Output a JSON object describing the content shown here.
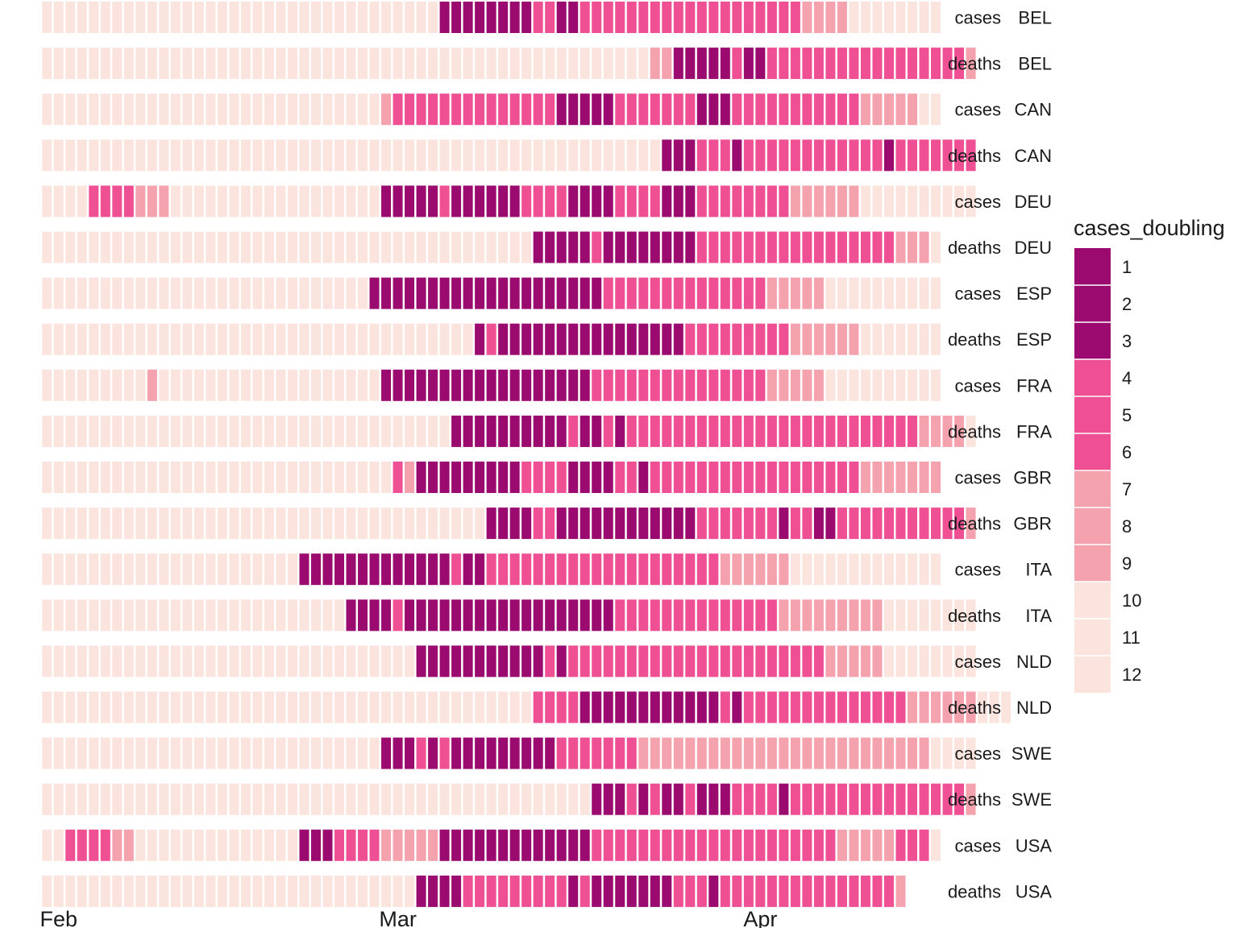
{
  "chart_data": {
    "type": "heatmap",
    "title": "",
    "xlabel": "",
    "ylabel": "",
    "x_start_date": "2020-01-31",
    "x_ticks": [
      {
        "label": "Feb",
        "date": "2020-02-01"
      },
      {
        "label": "Mar",
        "date": "2020-03-01"
      },
      {
        "label": "Apr",
        "date": "2020-04-01"
      }
    ],
    "legend": {
      "title": "cases_doubling",
      "position": "right",
      "levels": [
        "1",
        "2",
        "3",
        "4",
        "5",
        "6",
        "7",
        "8",
        "9",
        "10",
        "11",
        "12"
      ],
      "colors": [
        "#9b0a6e",
        "#9b0a6e",
        "#9b0a6e",
        "#ef5094",
        "#ef5094",
        "#ef5094",
        "#f4a3ae",
        "#f4a3ae",
        "#f4a3ae",
        "#fbe4de",
        "#fbe4de",
        "#fbe4de"
      ]
    },
    "color_classes": {
      "1": "#9b0a6e",
      "2": "#ef5094",
      "3": "#f4a3ae",
      "4": "#fbe4de"
    },
    "rows": [
      {
        "measure": "cases",
        "country": "BEL",
        "values": "44444444444444444444444444444444441111111122112222222222222222222333344444444"
      },
      {
        "measure": "deaths",
        "country": "BEL",
        "values": "44444444444444444444444444444444444444444444444444443311111211222222222222222223"
      },
      {
        "measure": "cases",
        "country": "CAN",
        "values": "44444444444444444444444444444322222222222222111112222222111222222222223333344"
      },
      {
        "measure": "deaths",
        "country": "CAN",
        "values": "44444444444444444444444444444444444444444444444444444111222122222222222212222222"
      },
      {
        "measure": "cases",
        "country": "DEU",
        "values": "44442222333444444444444444444111112111111222211112222111222222223333334444444444"
      },
      {
        "measure": "deaths",
        "country": "DEU",
        "values": "44444444444444444444444444444444444444444411111211111111222222222222222223334"
      },
      {
        "measure": "cases",
        "country": "ESP",
        "values": "44444444444444444444444444441111111111111111111122222222222222333334444444444"
      },
      {
        "measure": "deaths",
        "country": "ESP",
        "values": "44444444444444444444444444444444444441211111111111111112222222223333334444444"
      },
      {
        "measure": "cases",
        "country": "FRA",
        "values": "44444444434444444444444444444111111111111111111222222222222222333334444444444"
      },
      {
        "measure": "deaths",
        "country": "FRA",
        "values": "44444444444444444444444444444444444111111111121121222222222222222222222222233334"
      },
      {
        "measure": "cases",
        "country": "GBR",
        "values": "44444444444444444444444444444423111111111222211112212222222222222222223333333"
      },
      {
        "measure": "deaths",
        "country": "GBR",
        "values": "44444444444444444444444444444444444444111122111111111111222222212211222222222223"
      },
      {
        "measure": "cases",
        "country": "ITA",
        "values": "44444444444444444444441111111111111211222222222222222222223333334444444444444"
      },
      {
        "measure": "deaths",
        "country": "ITA",
        "values": "44444444444444444444444444111121111111111111111112222222222222233333333344444444"
      },
      {
        "measure": "cases",
        "country": "NLD",
        "values": "44444444444444444444444444444444111111111112122222222222222222222223333344444444"
      },
      {
        "measure": "deaths",
        "country": "NLD",
        "values": "44444444444444444444444444444444444444444422221111111111112122222222222222333333444"
      },
      {
        "measure": "cases",
        "country": "SWE",
        "values": "44444444444444444444444444444111212111111111222222233333333333333333333333334444"
      },
      {
        "measure": "deaths",
        "country": "SWE",
        "values": "44444444444444444444444444444444444444444444444111212112111222212222222222222223"
      },
      {
        "measure": "cases",
        "country": "USA",
        "values": "44222233444444444444441112222333331111111111111222222222222222222222333332224"
      },
      {
        "measure": "deaths",
        "country": "USA",
        "values": "44444444444444444444444444444444111122222222212111111122212222222222222223"
      }
    ]
  }
}
